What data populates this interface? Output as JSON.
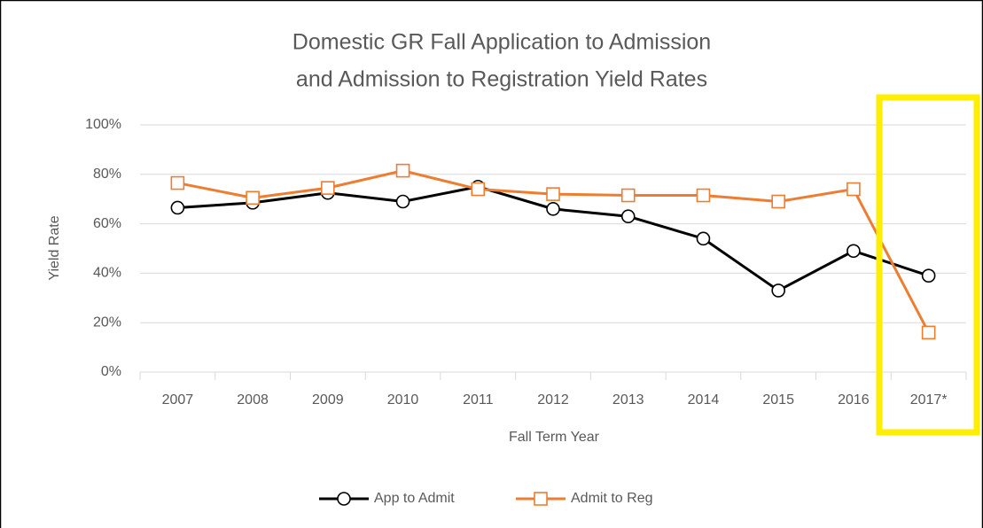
{
  "chart_data": {
    "type": "line",
    "title": [
      "Domestic GR Fall Application to Admission",
      "and Admission to Registration Yield Rates"
    ],
    "xlabel": "Fall Term Year",
    "ylabel": "Yield Rate",
    "categories": [
      "2007",
      "2008",
      "2009",
      "2010",
      "2011",
      "2012",
      "2013",
      "2014",
      "2015",
      "2016",
      "2017*"
    ],
    "series": [
      {
        "name": "App to Admit",
        "color": "#000000",
        "marker": "circle",
        "values": [
          66.5,
          68.5,
          72.5,
          69,
          75,
          66,
          63,
          54,
          33,
          49,
          39
        ]
      },
      {
        "name": "Admit to Reg",
        "color": "#ed7d31",
        "marker": "square",
        "values": [
          76.5,
          70.5,
          74.5,
          81.5,
          74,
          72,
          71.5,
          71.5,
          69,
          74,
          16
        ]
      }
    ],
    "ylim": [
      0,
      100
    ],
    "yticks": [
      {
        "value": 0,
        "label": "0%"
      },
      {
        "value": 20,
        "label": "20%"
      },
      {
        "value": 40,
        "label": "40%"
      },
      {
        "value": 60,
        "label": "60%"
      },
      {
        "value": 80,
        "label": "80%"
      },
      {
        "value": 100,
        "label": "100%"
      }
    ],
    "grid": true,
    "legend": "bottom"
  }
}
